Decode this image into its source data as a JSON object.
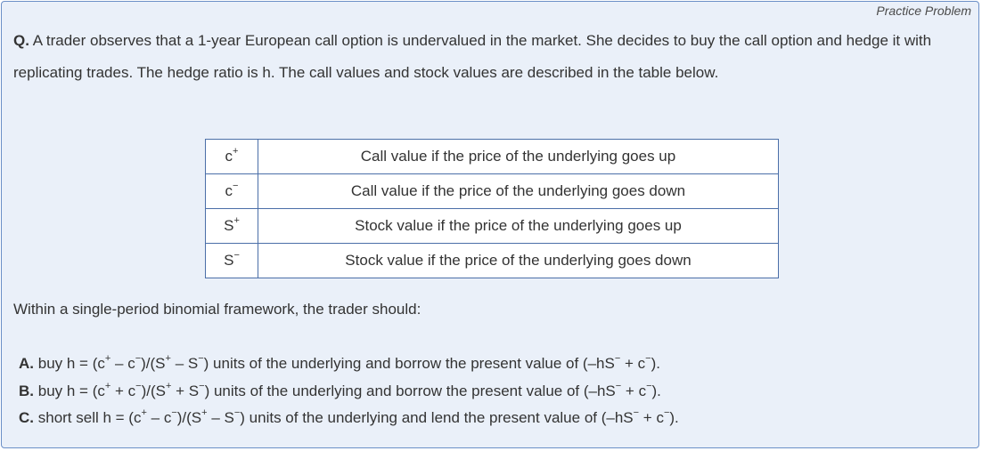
{
  "tag": "Practice Problem",
  "question": {
    "label": "Q.",
    "text": "A trader observes that a 1-year European call option is undervalued in the market. She decides to buy the call option and hedge it with replicating trades. The hedge ratio is h. The call values and stock values are described in the table below."
  },
  "table": {
    "rows": [
      {
        "base": "c",
        "sup": "+",
        "desc": "Call value if the price of the underlying goes up"
      },
      {
        "base": "c",
        "sup": "−",
        "desc": "Call value if the price of the underlying goes down"
      },
      {
        "base": "S",
        "sup": "+",
        "desc": "Stock value if the price of the underlying goes up"
      },
      {
        "base": "S",
        "sup": "−",
        "desc": "Stock value if the price of the underlying goes down"
      }
    ]
  },
  "prompt": "Within a single-period binomial framework, the trader should:",
  "options": [
    {
      "letter": "A.",
      "parts": [
        "buy h = (c",
        "+",
        " – c",
        "−",
        ")/(S",
        "+",
        " – S",
        "−",
        ") units of the underlying and borrow the present value of (–hS",
        "−",
        " + c",
        "−",
        ")."
      ]
    },
    {
      "letter": "B.",
      "parts": [
        "buy h = (c",
        "+",
        " + c",
        "−",
        ")/(S",
        "+",
        " + S",
        "−",
        ") units of the underlying and borrow the present value of (–hS",
        "−",
        " + c",
        "−",
        ")."
      ]
    },
    {
      "letter": "C.",
      "parts": [
        "short sell h = (c",
        "+",
        " – c",
        "−",
        ")/(S",
        "+",
        " – S",
        "−",
        ") units of the underlying and lend the present value of (–hS",
        "−",
        " + c",
        "−",
        ")."
      ]
    }
  ]
}
